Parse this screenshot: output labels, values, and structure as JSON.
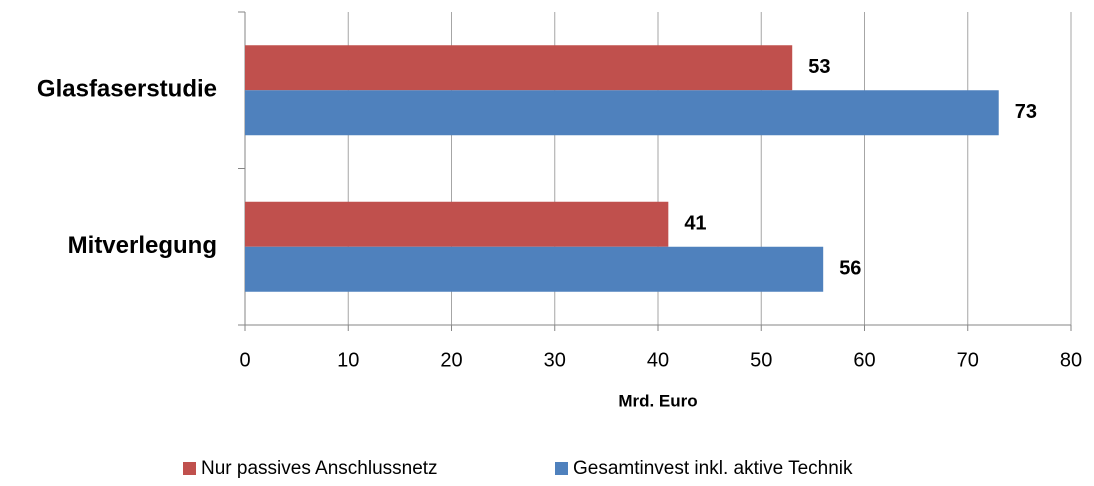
{
  "chart_data": {
    "type": "hbar",
    "categories": [
      "Glasfaserstudie",
      "Mitverlegung"
    ],
    "series": [
      {
        "name": "Nur passives Anschlussnetz",
        "color": "#c0504d",
        "values": [
          53,
          41
        ]
      },
      {
        "name": "Gesamtinvest inkl. aktive Technik",
        "color": "#4f81bd",
        "values": [
          73,
          56
        ]
      }
    ],
    "x_label": "Mrd. Euro",
    "xlim": [
      0,
      80
    ],
    "xticks": [
      0,
      10,
      20,
      30,
      40,
      50,
      60,
      70,
      80
    ],
    "grid": true,
    "legend": "bottom"
  }
}
